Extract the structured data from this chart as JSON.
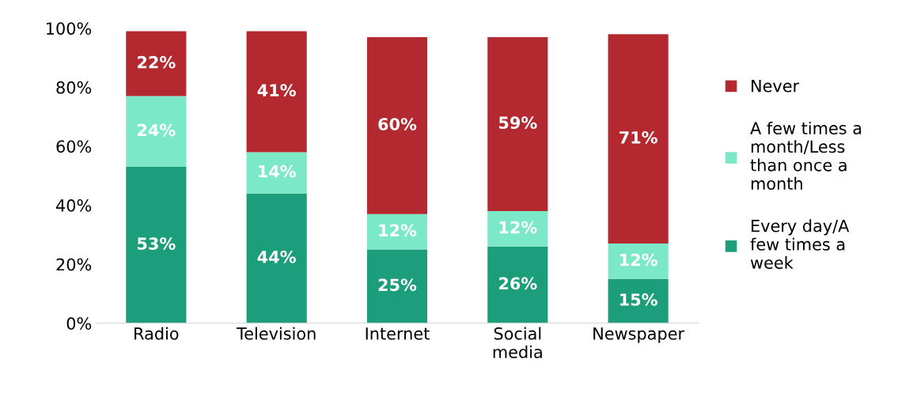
{
  "chart_data": {
    "type": "bar",
    "stacked": true,
    "categories": [
      "Radio",
      "Television",
      "Internet",
      "Social\nmedia",
      "Newspaper"
    ],
    "series": [
      {
        "name": "Every day/A\nfew times a\nweek",
        "color": "#1c9e7b",
        "values": [
          53,
          44,
          25,
          26,
          15
        ],
        "value_labels": [
          "53%",
          "44%",
          "25%",
          "26%",
          "15%"
        ]
      },
      {
        "name": "A few times a\nmonth/Less\nthan once a\nmonth",
        "color": "#7be8c8",
        "values": [
          24,
          14,
          12,
          12,
          12
        ],
        "value_labels": [
          "24%",
          "14%",
          "12%",
          "12%",
          "12%"
        ]
      },
      {
        "name": "Never",
        "color": "#b4292f",
        "values": [
          22,
          41,
          60,
          59,
          71
        ],
        "value_labels": [
          "22%",
          "41%",
          "60%",
          "59%",
          "71%"
        ]
      }
    ],
    "ylim": [
      0,
      100
    ],
    "yticks": [
      {
        "value": 0,
        "label": "0%"
      },
      {
        "value": 20,
        "label": "20%"
      },
      {
        "value": 40,
        "label": "40%"
      },
      {
        "value": 60,
        "label": "60%"
      },
      {
        "value": 80,
        "label": "80%"
      },
      {
        "value": 100,
        "label": "100%"
      }
    ],
    "grid": false,
    "legend": "right"
  }
}
